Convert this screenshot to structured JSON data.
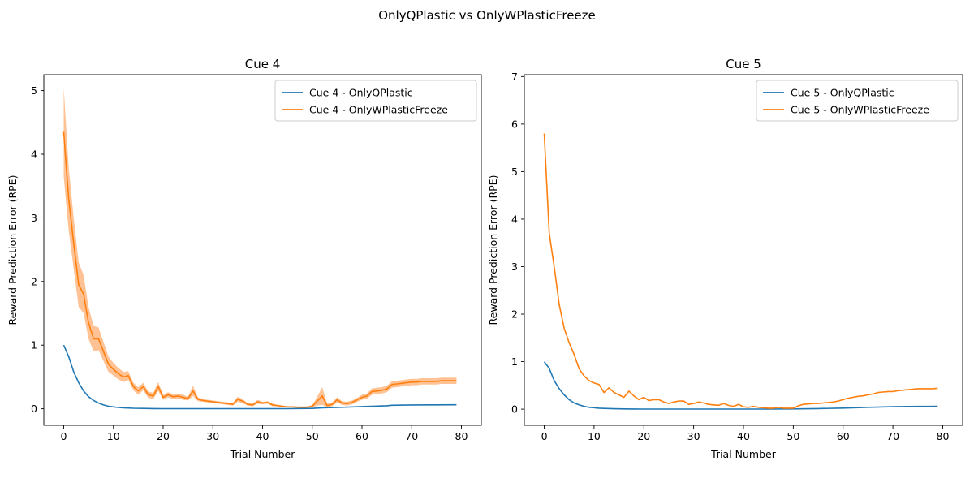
{
  "suptitle": "OnlyQPlastic vs OnlyWPlasticFreeze",
  "colors": {
    "blue": "#1f77b4",
    "orange": "#ff7f0e",
    "band": "#ffbb88"
  },
  "chart_data": [
    {
      "type": "line",
      "title": "Cue 4",
      "xlabel": "Trial Number",
      "ylabel": "Reward Prediction Error (RPE)",
      "xlim": [
        -4,
        84
      ],
      "ylim": [
        -0.26,
        5.25
      ],
      "xticks": [
        0,
        10,
        20,
        30,
        40,
        50,
        60,
        70,
        80
      ],
      "yticks": [
        0,
        1,
        2,
        3,
        4,
        5
      ],
      "legend_position": "upper right",
      "series": [
        {
          "name": "Cue 4 - OnlyQPlastic",
          "color": "#1f77b4",
          "x": [
            0,
            1,
            2,
            3,
            4,
            5,
            6,
            7,
            8,
            9,
            10,
            11,
            12,
            14,
            16,
            18,
            20,
            25,
            30,
            35,
            40,
            45,
            50,
            52,
            55,
            60,
            65,
            66,
            70,
            75,
            79
          ],
          "y": [
            1.0,
            0.82,
            0.58,
            0.41,
            0.28,
            0.19,
            0.13,
            0.09,
            0.06,
            0.04,
            0.03,
            0.02,
            0.015,
            0.008,
            0.005,
            0.003,
            0.002,
            0.001,
            0.001,
            0.001,
            0.001,
            0.002,
            0.005,
            0.015,
            0.02,
            0.035,
            0.048,
            0.055,
            0.06,
            0.062,
            0.063
          ]
        },
        {
          "name": "Cue 4 - OnlyWPlasticFreeze",
          "color": "#ff7f0e",
          "x": [
            0,
            1,
            2,
            3,
            4,
            5,
            6,
            7,
            8,
            9,
            10,
            11,
            12,
            13,
            14,
            15,
            16,
            17,
            18,
            19,
            20,
            21,
            22,
            23,
            24,
            25,
            26,
            27,
            28,
            29,
            30,
            31,
            32,
            33,
            34,
            35,
            36,
            37,
            38,
            39,
            40,
            41,
            42,
            43,
            44,
            45,
            46,
            47,
            48,
            49,
            50,
            51,
            52,
            53,
            54,
            55,
            56,
            57,
            58,
            59,
            60,
            61,
            62,
            63,
            64,
            65,
            66,
            67,
            68,
            69,
            70,
            71,
            72,
            73,
            74,
            75,
            76,
            77,
            78,
            79
          ],
          "y": [
            4.35,
            3.3,
            2.6,
            1.95,
            1.8,
            1.35,
            1.1,
            1.1,
            0.9,
            0.7,
            0.62,
            0.55,
            0.5,
            0.52,
            0.35,
            0.28,
            0.35,
            0.22,
            0.2,
            0.35,
            0.18,
            0.22,
            0.19,
            0.2,
            0.18,
            0.16,
            0.28,
            0.15,
            0.13,
            0.12,
            0.11,
            0.1,
            0.09,
            0.08,
            0.07,
            0.15,
            0.12,
            0.07,
            0.06,
            0.11,
            0.09,
            0.1,
            0.06,
            0.05,
            0.04,
            0.03,
            0.03,
            0.025,
            0.025,
            0.025,
            0.04,
            0.12,
            0.2,
            0.05,
            0.07,
            0.14,
            0.09,
            0.08,
            0.1,
            0.14,
            0.18,
            0.2,
            0.27,
            0.28,
            0.29,
            0.31,
            0.38,
            0.39,
            0.4,
            0.41,
            0.42,
            0.42,
            0.43,
            0.43,
            0.43,
            0.43,
            0.44,
            0.44,
            0.44,
            0.44
          ],
          "band_halfwidth": [
            0.7,
            0.5,
            0.4,
            0.35,
            0.3,
            0.25,
            0.2,
            0.18,
            0.15,
            0.12,
            0.1,
            0.09,
            0.08,
            0.07,
            0.06,
            0.06,
            0.06,
            0.05,
            0.05,
            0.07,
            0.04,
            0.04,
            0.04,
            0.04,
            0.04,
            0.03,
            0.08,
            0.03,
            0.02,
            0.02,
            0.02,
            0.02,
            0.02,
            0.02,
            0.02,
            0.04,
            0.03,
            0.02,
            0.02,
            0.03,
            0.02,
            0.02,
            0.02,
            0.01,
            0.01,
            0.01,
            0.01,
            0.01,
            0.01,
            0.01,
            0.02,
            0.07,
            0.14,
            0.03,
            0.03,
            0.04,
            0.03,
            0.03,
            0.03,
            0.03,
            0.04,
            0.04,
            0.05,
            0.05,
            0.05,
            0.05,
            0.05,
            0.05,
            0.05,
            0.05,
            0.05,
            0.05,
            0.05,
            0.05,
            0.05,
            0.05,
            0.05,
            0.05,
            0.05,
            0.05
          ]
        }
      ]
    },
    {
      "type": "line",
      "title": "Cue 5",
      "xlabel": "Trial Number",
      "ylabel": "Reward Prediction Error (RPE)",
      "xlim": [
        -4,
        84
      ],
      "ylim": [
        -0.34,
        7.04
      ],
      "xticks": [
        0,
        10,
        20,
        30,
        40,
        50,
        60,
        70,
        80
      ],
      "yticks": [
        0,
        1,
        2,
        3,
        4,
        5,
        6,
        7
      ],
      "legend_position": "upper right",
      "series": [
        {
          "name": "Cue 5 - OnlyQPlastic",
          "color": "#1f77b4",
          "x": [
            0,
            1,
            2,
            3,
            4,
            5,
            6,
            7,
            8,
            9,
            10,
            11,
            12,
            14,
            16,
            18,
            20,
            25,
            30,
            35,
            40,
            45,
            50,
            55,
            60,
            65,
            70,
            75,
            79
          ],
          "y": [
            1.0,
            0.86,
            0.6,
            0.43,
            0.3,
            0.2,
            0.13,
            0.09,
            0.06,
            0.04,
            0.03,
            0.02,
            0.015,
            0.008,
            0.005,
            0.003,
            0.002,
            0.001,
            0.001,
            0.001,
            0.001,
            0.002,
            0.005,
            0.012,
            0.022,
            0.04,
            0.052,
            0.058,
            0.06
          ]
        },
        {
          "name": "Cue 5 - OnlyWPlasticFreeze",
          "color": "#ff7f0e",
          "x": [
            0,
            1,
            2,
            3,
            4,
            5,
            6,
            7,
            8,
            9,
            10,
            11,
            12,
            13,
            14,
            15,
            16,
            17,
            18,
            19,
            20,
            21,
            22,
            23,
            24,
            25,
            26,
            27,
            28,
            29,
            30,
            31,
            32,
            33,
            34,
            35,
            36,
            37,
            38,
            39,
            40,
            41,
            42,
            43,
            44,
            45,
            46,
            47,
            48,
            49,
            50,
            51,
            52,
            53,
            54,
            55,
            56,
            57,
            58,
            59,
            60,
            61,
            62,
            63,
            64,
            65,
            66,
            67,
            68,
            69,
            70,
            71,
            72,
            73,
            74,
            75,
            76,
            77,
            78,
            79
          ],
          "y": [
            5.8,
            3.7,
            3.0,
            2.2,
            1.7,
            1.4,
            1.15,
            0.85,
            0.7,
            0.6,
            0.55,
            0.52,
            0.35,
            0.45,
            0.35,
            0.3,
            0.25,
            0.38,
            0.28,
            0.2,
            0.25,
            0.18,
            0.2,
            0.2,
            0.15,
            0.12,
            0.15,
            0.17,
            0.17,
            0.1,
            0.12,
            0.15,
            0.13,
            0.1,
            0.09,
            0.08,
            0.12,
            0.08,
            0.06,
            0.1,
            0.05,
            0.04,
            0.06,
            0.04,
            0.03,
            0.02,
            0.02,
            0.04,
            0.02,
            0.02,
            0.02,
            0.07,
            0.1,
            0.11,
            0.12,
            0.12,
            0.13,
            0.14,
            0.15,
            0.17,
            0.2,
            0.23,
            0.25,
            0.27,
            0.28,
            0.3,
            0.32,
            0.35,
            0.36,
            0.37,
            0.37,
            0.39,
            0.4,
            0.41,
            0.42,
            0.43,
            0.43,
            0.43,
            0.43,
            0.44
          ]
        }
      ]
    }
  ]
}
